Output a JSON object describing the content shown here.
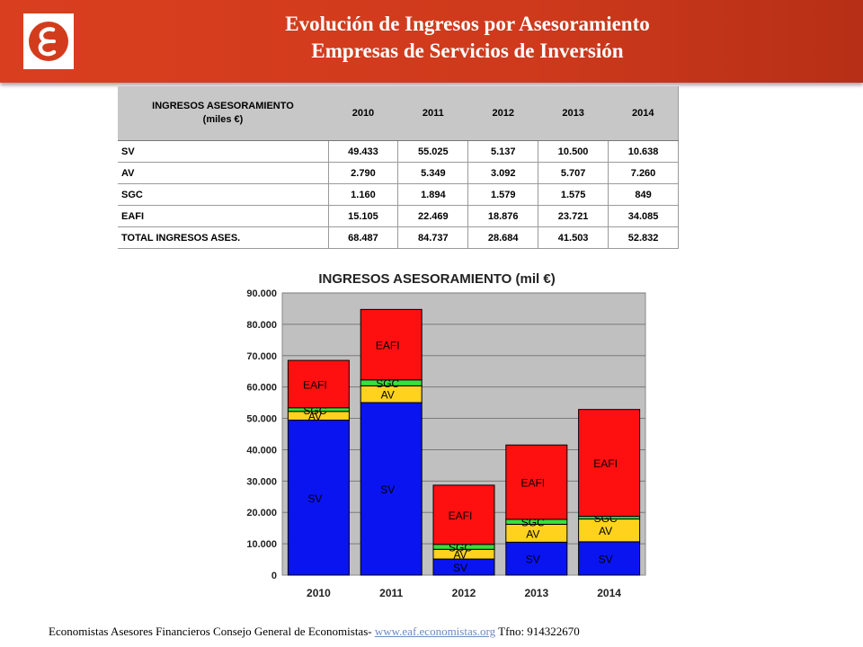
{
  "header": {
    "title_line1": "Evolución de Ingresos por Asesoramiento",
    "title_line2": "Empresas de Servicios de Inversión",
    "logo_icon": "eaf-logo-icon",
    "brand_color": "#d23c1d"
  },
  "table": {
    "label_header_line1": "INGRESOS ASESORAMIENTO",
    "label_header_line2": "(miles €)",
    "years": [
      "2010",
      "2011",
      "2012",
      "2013",
      "2014"
    ],
    "rows": [
      {
        "label": "SV",
        "values": [
          "49.433",
          "55.025",
          "5.137",
          "10.500",
          "10.638"
        ]
      },
      {
        "label": "AV",
        "values": [
          "2.790",
          "5.349",
          "3.092",
          "5.707",
          "7.260"
        ]
      },
      {
        "label": "SGC",
        "values": [
          "1.160",
          "1.894",
          "1.579",
          "1.575",
          "849"
        ]
      },
      {
        "label": "EAFI",
        "values": [
          "15.105",
          "22.469",
          "18.876",
          "23.721",
          "34.085"
        ]
      },
      {
        "label": "TOTAL INGRESOS ASES.",
        "values": [
          "68.487",
          "84.737",
          "28.684",
          "41.503",
          "52.832"
        ]
      }
    ]
  },
  "chart_data": {
    "type": "bar",
    "stacked": true,
    "title": "INGRESOS ASESORAMIENTO (mil €)",
    "categories": [
      "2010",
      "2011",
      "2012",
      "2013",
      "2014"
    ],
    "series": [
      {
        "name": "SV",
        "values": [
          49433,
          55025,
          5137,
          10500,
          10638
        ],
        "color": "#0a14f0"
      },
      {
        "name": "AV",
        "values": [
          2790,
          5349,
          3092,
          5707,
          7260
        ],
        "color": "#ffd21e"
      },
      {
        "name": "SGC",
        "values": [
          1160,
          1894,
          1579,
          1575,
          849
        ],
        "color": "#38e038"
      },
      {
        "name": "EAFI",
        "values": [
          15105,
          22469,
          18876,
          23721,
          34085
        ],
        "color": "#ff1010"
      }
    ],
    "ylim": [
      0,
      90000
    ],
    "yticks": [
      0,
      10000,
      20000,
      30000,
      40000,
      50000,
      60000,
      70000,
      80000,
      90000
    ],
    "ytick_labels": [
      "0",
      "10.000",
      "20.000",
      "30.000",
      "40.000",
      "50.000",
      "60.000",
      "70.000",
      "80.000",
      "90.000"
    ],
    "grid": true,
    "plot_background": "#c0c0c0"
  },
  "footer": {
    "text": "Economistas Asesores Financieros Consejo General de Economistas- ",
    "link": "www.eaf.economistas.org",
    "phone": " Tfno: 914322670"
  }
}
